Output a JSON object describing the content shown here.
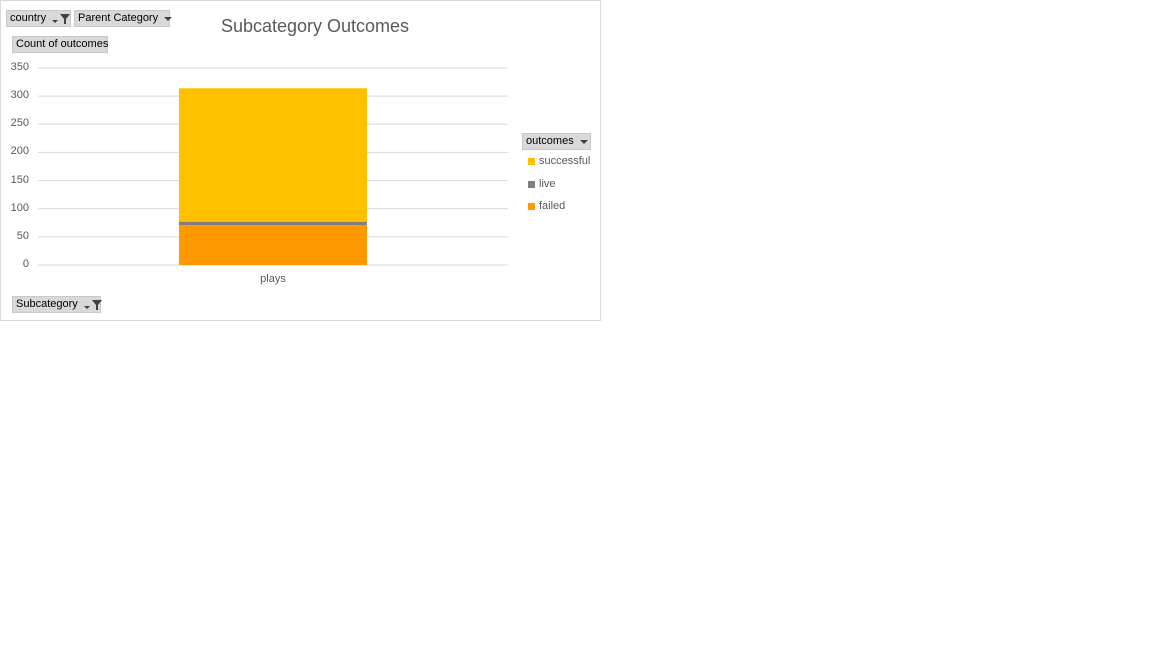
{
  "filters": {
    "country": "country",
    "parent_category": "Parent Category",
    "subcategory": "Subcategory",
    "values_field": "Count of outcomes",
    "legend_field": "outcomes"
  },
  "colors": {
    "successful": "#ffc000",
    "live": "#7f7f7f",
    "failed": "#ff9900",
    "gridline": "#d9d9d9"
  },
  "chart_data": {
    "type": "bar",
    "stacked": true,
    "title": "Subcategory Outcomes",
    "categories": [
      "plays"
    ],
    "series": [
      {
        "name": "failed",
        "values": [
          71
        ]
      },
      {
        "name": "live",
        "values": [
          6
        ]
      },
      {
        "name": "successful",
        "values": [
          237
        ]
      }
    ],
    "legend_order": [
      "successful",
      "live",
      "failed"
    ],
    "ylim": [
      0,
      350
    ],
    "yticks": [
      0,
      50,
      100,
      150,
      200,
      250,
      300,
      350
    ],
    "grid": true,
    "legend_position": "right"
  }
}
